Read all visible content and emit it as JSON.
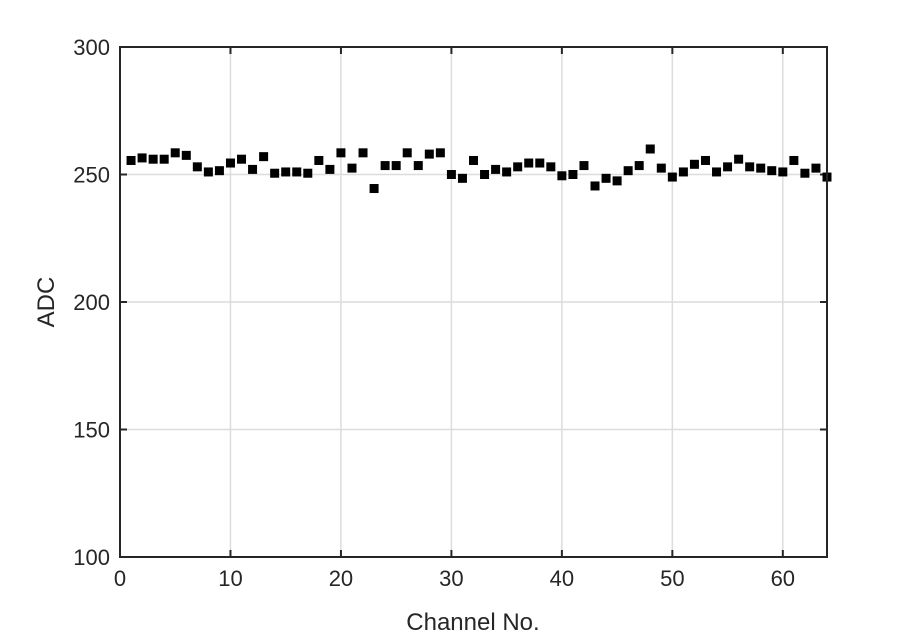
{
  "chart_data": {
    "type": "scatter",
    "title": "",
    "xlabel": "Channel No.",
    "ylabel": "ADC",
    "xlim": [
      0,
      64
    ],
    "ylim": [
      100,
      300
    ],
    "xticks": [
      0,
      10,
      20,
      30,
      40,
      50,
      60
    ],
    "yticks": [
      100,
      150,
      200,
      250,
      300
    ],
    "grid": true,
    "marker": "square",
    "marker_color": "#000000",
    "x": [
      1,
      2,
      3,
      4,
      5,
      6,
      7,
      8,
      9,
      10,
      11,
      12,
      13,
      14,
      15,
      16,
      17,
      18,
      19,
      20,
      21,
      22,
      23,
      24,
      25,
      26,
      27,
      28,
      29,
      30,
      31,
      32,
      33,
      34,
      35,
      36,
      37,
      38,
      39,
      40,
      41,
      42,
      43,
      44,
      45,
      46,
      47,
      48,
      49,
      50,
      51,
      52,
      53,
      54,
      55,
      56,
      57,
      58,
      59,
      60,
      61,
      62,
      63,
      64
    ],
    "y": [
      255.5,
      256.5,
      256,
      256,
      258.5,
      257.5,
      253,
      251,
      251.5,
      254.5,
      256,
      252,
      257,
      250.5,
      251,
      251,
      250.5,
      255.5,
      252,
      258.5,
      252.5,
      258.5,
      244.5,
      253.5,
      253.5,
      258.5,
      253.5,
      258,
      258.5,
      250,
      248.5,
      255.5,
      250,
      252,
      251,
      253,
      254.5,
      254.5,
      253,
      249.5,
      250,
      253.5,
      245.5,
      248.5,
      247.5,
      251.5,
      253.5,
      260,
      252.5,
      249,
      251,
      254,
      255.5,
      251,
      253,
      256,
      253,
      252.5,
      251.5,
      251,
      255.5,
      250.5,
      252.5,
      249
    ]
  }
}
